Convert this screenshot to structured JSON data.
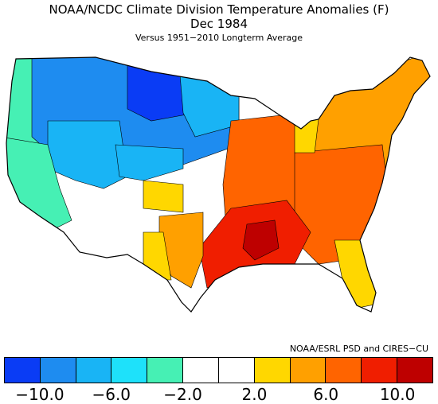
{
  "title": "NOAA/NCDC Climate Division Temperature Anomalies (F)",
  "subtitle": "Dec 1984",
  "caption": "Versus 1951−2010 Longterm Average",
  "credit": "NOAA/ESRL PSD and CIRES−CU",
  "legend": {
    "colors": [
      "#0a3cf5",
      "#1e8cf0",
      "#19b4f5",
      "#1ee1fa",
      "#46f0b4",
      "#ffffff",
      "#ffffff",
      "#ffd700",
      "#ffa000",
      "#ff6400",
      "#f01e00",
      "#be0000"
    ],
    "tick_labels": [
      "−10.0",
      "−6.0",
      "−2.0",
      "2.0",
      "6.0",
      "10.0"
    ]
  },
  "map_regions": [
    {
      "name": "pacific-northwest",
      "color": "#46f0b4"
    },
    {
      "name": "northern-plains-cold-core",
      "color": "#0a3cf5"
    },
    {
      "name": "northern-rockies",
      "color": "#1e8cf0"
    },
    {
      "name": "intermountain-west",
      "color": "#19b4f5"
    },
    {
      "name": "california-coast",
      "color": "#46f0b4"
    },
    {
      "name": "southwest-normal",
      "color": "#ffffff"
    },
    {
      "name": "central-plains-warm",
      "color": "#ffd700"
    },
    {
      "name": "ohio-valley-southeast",
      "color": "#ff6400"
    },
    {
      "name": "lower-mississippi-gulf",
      "color": "#f01e00"
    },
    {
      "name": "northeast",
      "color": "#ffa000"
    },
    {
      "name": "florida",
      "color": "#ffd700"
    }
  ]
}
